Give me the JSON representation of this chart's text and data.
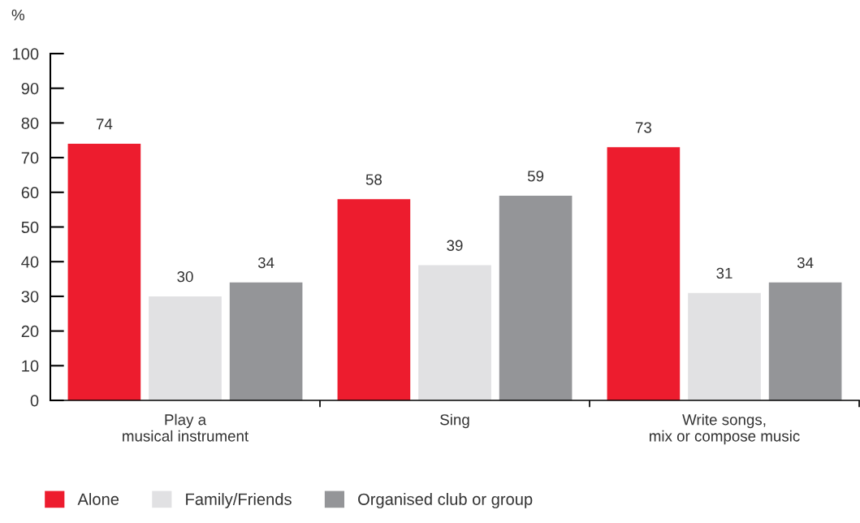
{
  "chart_data": {
    "type": "bar",
    "ylabel": "%",
    "categories": [
      "Play a\nmusical instrument",
      "Sing",
      "Write songs,\nmix or compose music"
    ],
    "series": [
      {
        "name": "Alone",
        "color": "#ed1c2e",
        "values": [
          74,
          58,
          73
        ]
      },
      {
        "name": "Family/Friends",
        "color": "#e1e1e3",
        "values": [
          30,
          39,
          31
        ]
      },
      {
        "name": "Organised club or group",
        "color": "#949598",
        "values": [
          34,
          59,
          34
        ]
      }
    ],
    "ylim": [
      0,
      100
    ],
    "yticks": [
      0,
      10,
      20,
      30,
      40,
      50,
      60,
      70,
      80,
      90,
      100
    ],
    "data_labels": true,
    "grid": false,
    "legend": "bottom left"
  }
}
